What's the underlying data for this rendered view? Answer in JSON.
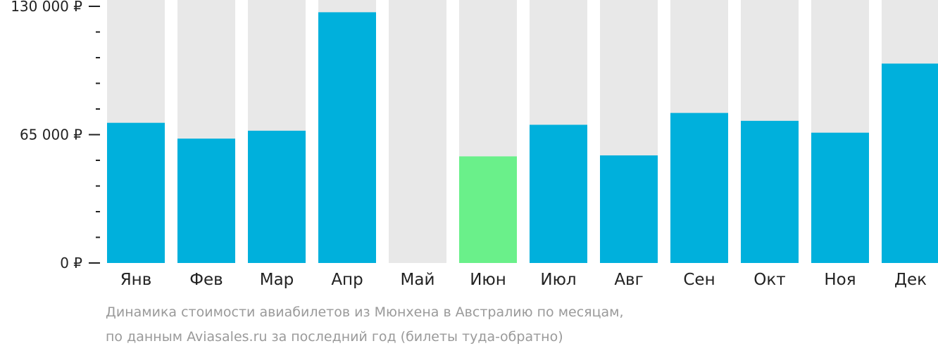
{
  "chart_data": {
    "type": "bar",
    "categories": [
      "Янв",
      "Фев",
      "Мар",
      "Апр",
      "Май",
      "Июн",
      "Июл",
      "Авг",
      "Сен",
      "Окт",
      "Ноя",
      "Дек"
    ],
    "values": [
      71000,
      63000,
      67000,
      127000,
      0,
      54000,
      70000,
      54500,
      76000,
      72000,
      66000,
      101000
    ],
    "highlight_index": 5,
    "ylim": [
      0,
      130000
    ],
    "yticks": [
      {
        "value": 130000,
        "label": "130 000 ₽"
      },
      {
        "value": 65000,
        "label": "65 000 ₽"
      },
      {
        "value": 0,
        "label": "0 ₽"
      }
    ],
    "minor_tick_step": 13000,
    "title": "",
    "xlabel": "",
    "ylabel": "",
    "grid": false,
    "colors": {
      "bar": "#00b0dc",
      "highlight": "#6af08a",
      "background_column": "#e8e8e8",
      "axis": "#222222"
    }
  },
  "caption": {
    "line1": "Динамика стоимости авиабилетов из Мюнхена в Австралию по месяцам,",
    "line2": "по данным Aviasales.ru за последний год (билеты туда-обратно)"
  }
}
